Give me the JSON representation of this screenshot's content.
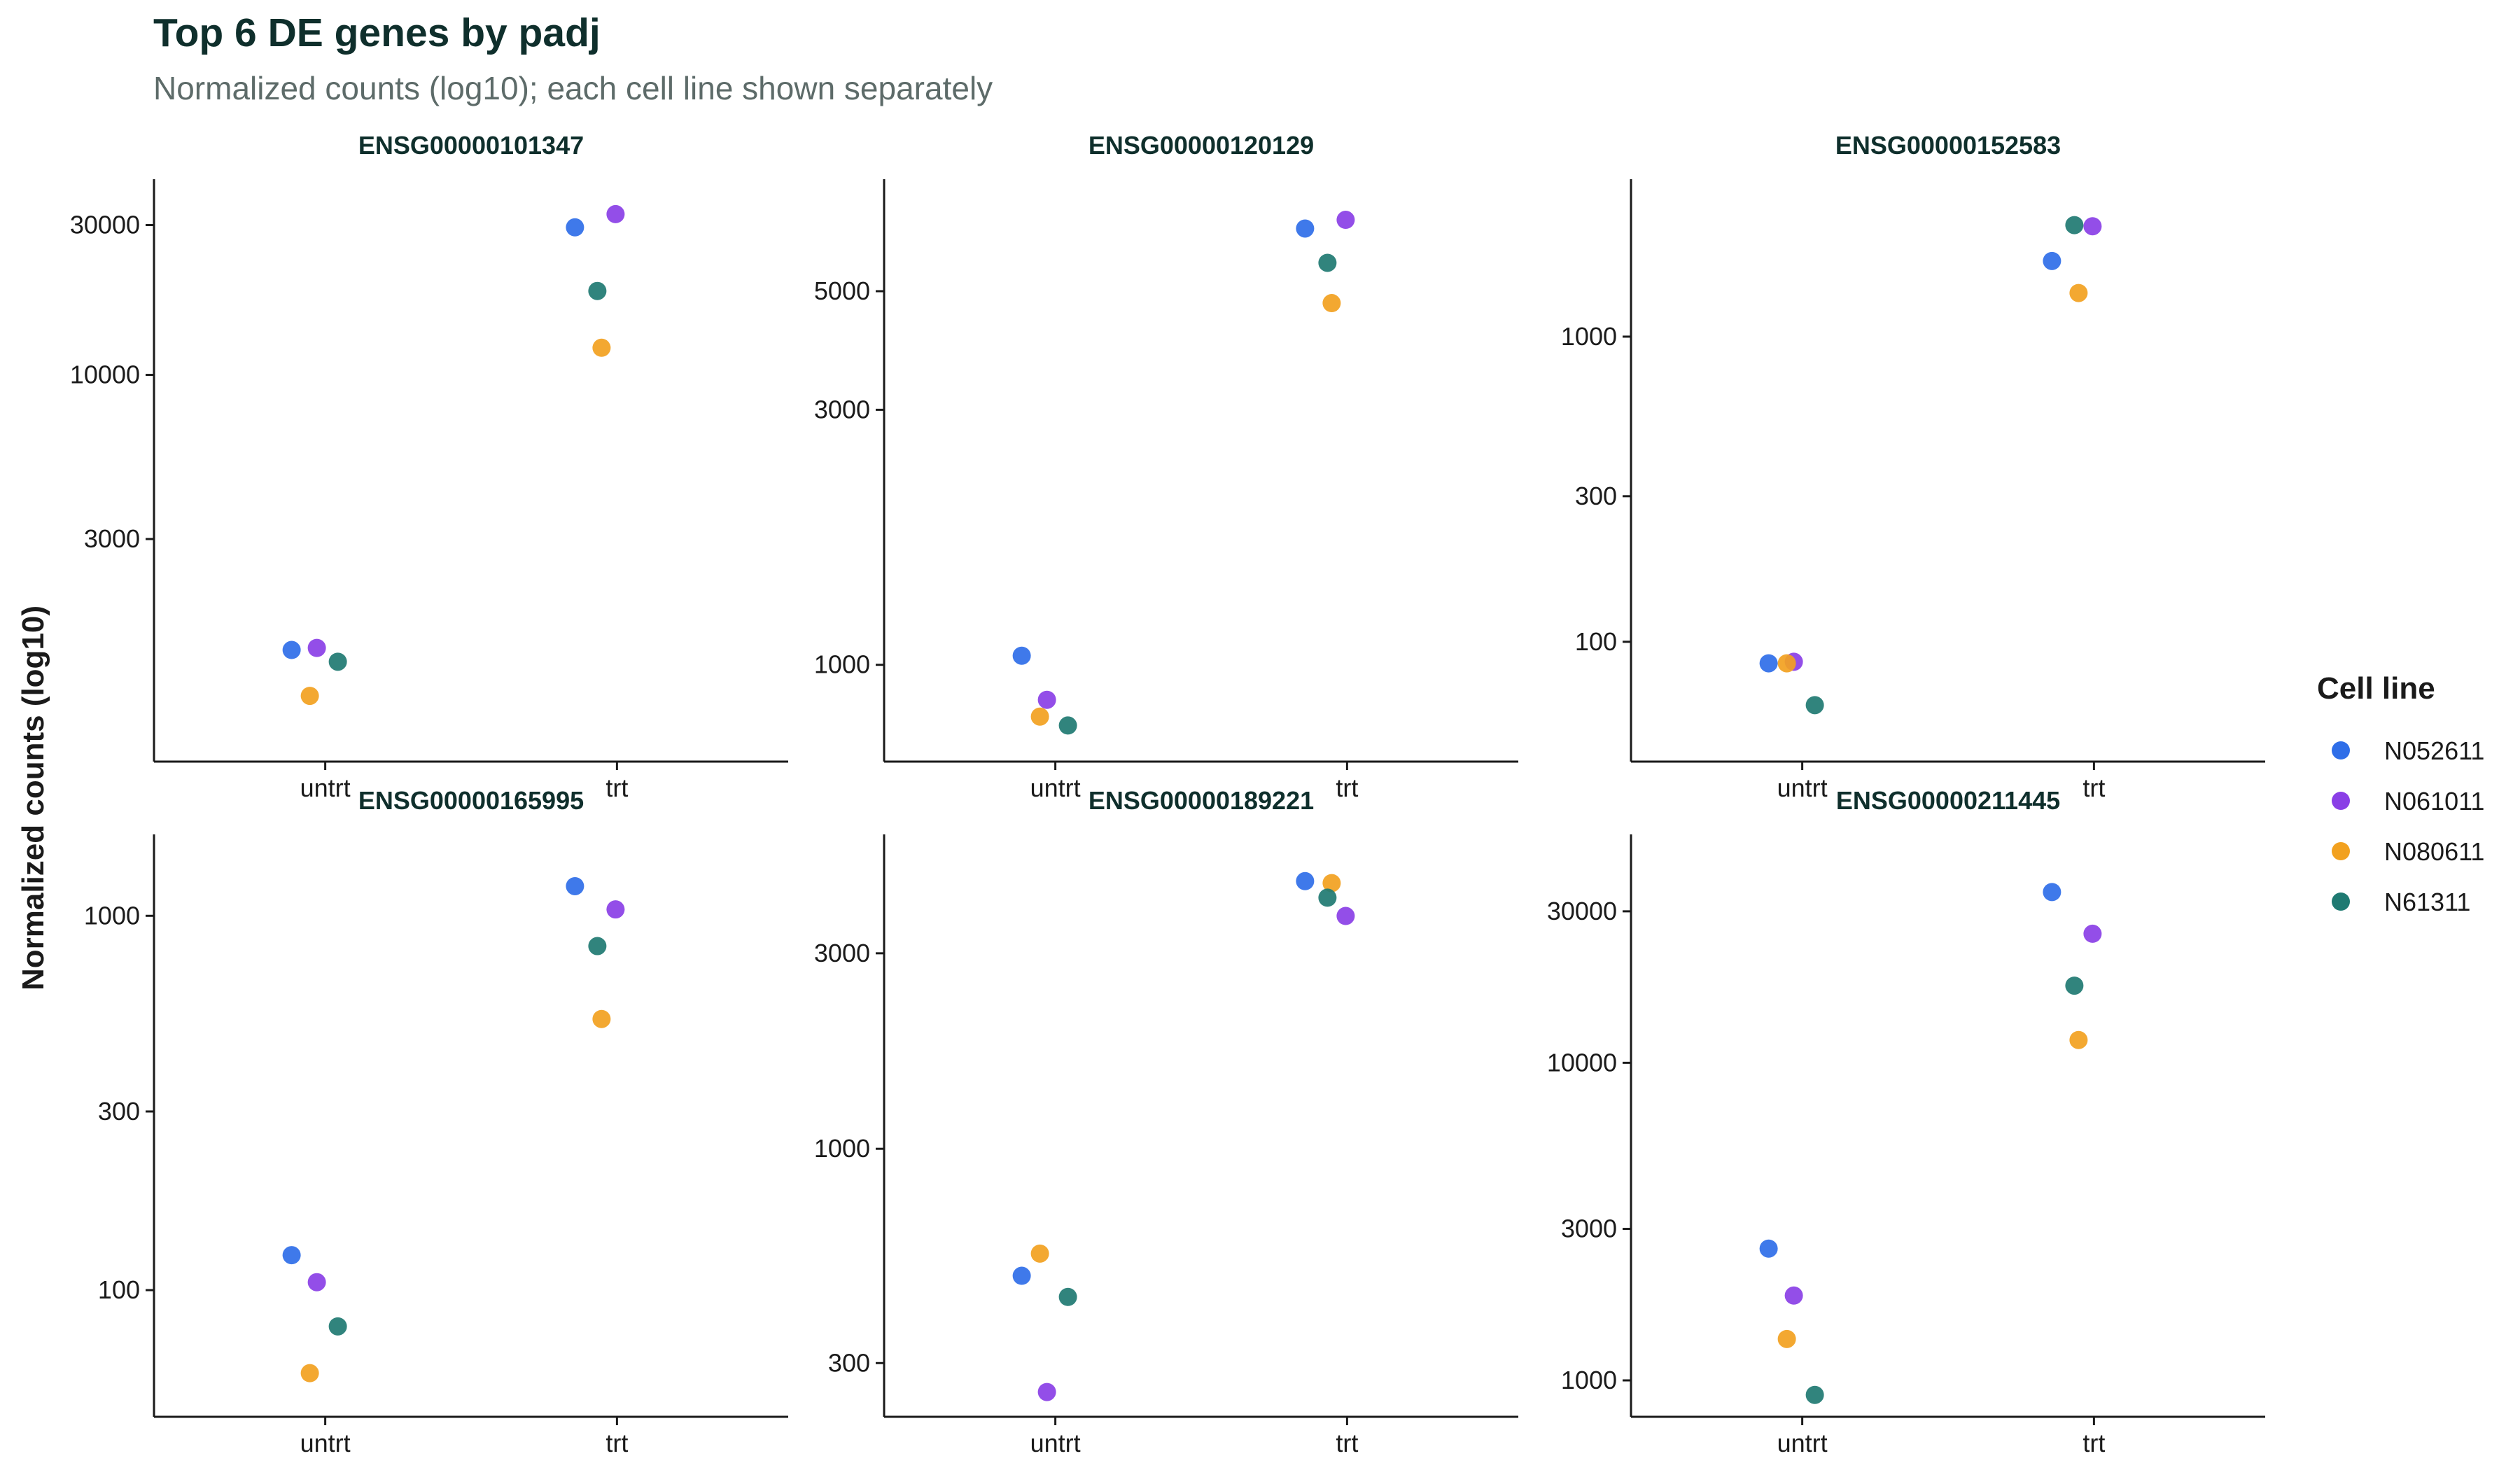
{
  "chart_data": {
    "type": "scatter",
    "title": "Top 6 DE genes by padj",
    "subtitle": "Normalized counts (log10); each cell line shown separately",
    "ylabel": "Normalized counts (log10)",
    "yscale": "log10",
    "categories": [
      "untrt",
      "trt"
    ],
    "legend": {
      "title": "Cell line",
      "placement": "right",
      "entries": [
        {
          "name": "N052611",
          "color": "#2f6ee8"
        },
        {
          "name": "N061011",
          "color": "#8a3fe6"
        },
        {
          "name": "N080611",
          "color": "#f2a11f"
        },
        {
          "name": "N61311",
          "color": "#1f7a72"
        }
      ]
    },
    "panels": [
      {
        "gene": "ENSG00000101347",
        "ylim": [
          650,
          36000
        ],
        "yticks": [
          3000,
          10000,
          30000
        ],
        "points": [
          {
            "cell_line": "N052611",
            "group": "untrt",
            "y": 1330
          },
          {
            "cell_line": "N061011",
            "group": "untrt",
            "y": 1350
          },
          {
            "cell_line": "N080611",
            "group": "untrt",
            "y": 950
          },
          {
            "cell_line": "N61311",
            "group": "untrt",
            "y": 1220
          },
          {
            "cell_line": "N052611",
            "group": "trt",
            "y": 29500
          },
          {
            "cell_line": "N061011",
            "group": "trt",
            "y": 32500
          },
          {
            "cell_line": "N080611",
            "group": "trt",
            "y": 12200
          },
          {
            "cell_line": "N61311",
            "group": "trt",
            "y": 18500
          }
        ]
      },
      {
        "gene": "ENSG00000120129",
        "ylim": [
          700,
          7400
        ],
        "yticks": [
          1000,
          3000,
          5000
        ],
        "points": [
          {
            "cell_line": "N052611",
            "group": "untrt",
            "y": 1040
          },
          {
            "cell_line": "N061011",
            "group": "untrt",
            "y": 860
          },
          {
            "cell_line": "N080611",
            "group": "untrt",
            "y": 800
          },
          {
            "cell_line": "N61311",
            "group": "untrt",
            "y": 770
          },
          {
            "cell_line": "N052611",
            "group": "trt",
            "y": 6550
          },
          {
            "cell_line": "N061011",
            "group": "trt",
            "y": 6800
          },
          {
            "cell_line": "N080611",
            "group": "trt",
            "y": 4750
          },
          {
            "cell_line": "N61311",
            "group": "trt",
            "y": 5650
          }
        ]
      },
      {
        "gene": "ENSG00000152583",
        "ylim": [
          45,
          2800
        ],
        "yticks": [
          100,
          300,
          1000
        ],
        "points": [
          {
            "cell_line": "N052611",
            "group": "untrt",
            "y": 85
          },
          {
            "cell_line": "N061011",
            "group": "untrt",
            "y": 86
          },
          {
            "cell_line": "N080611",
            "group": "untrt",
            "y": 85
          },
          {
            "cell_line": "N61311",
            "group": "untrt",
            "y": 62
          },
          {
            "cell_line": "N052611",
            "group": "trt",
            "y": 1770
          },
          {
            "cell_line": "N061011",
            "group": "trt",
            "y": 2300
          },
          {
            "cell_line": "N080611",
            "group": "trt",
            "y": 1390
          },
          {
            "cell_line": "N61311",
            "group": "trt",
            "y": 2320
          }
        ]
      },
      {
        "gene": "ENSG00000165995",
        "ylim": [
          50,
          1450
        ],
        "yticks": [
          100,
          300,
          1000
        ],
        "points": [
          {
            "cell_line": "N052611",
            "group": "untrt",
            "y": 124
          },
          {
            "cell_line": "N061011",
            "group": "untrt",
            "y": 105
          },
          {
            "cell_line": "N080611",
            "group": "untrt",
            "y": 60
          },
          {
            "cell_line": "N61311",
            "group": "untrt",
            "y": 80
          },
          {
            "cell_line": "N052611",
            "group": "trt",
            "y": 1200
          },
          {
            "cell_line": "N061011",
            "group": "trt",
            "y": 1040
          },
          {
            "cell_line": "N080611",
            "group": "trt",
            "y": 530
          },
          {
            "cell_line": "N61311",
            "group": "trt",
            "y": 830
          }
        ]
      },
      {
        "gene": "ENSG00000189221",
        "ylim": [
          240,
          5200
        ],
        "yticks": [
          300,
          1000,
          3000
        ],
        "points": [
          {
            "cell_line": "N052611",
            "group": "untrt",
            "y": 490
          },
          {
            "cell_line": "N061011",
            "group": "untrt",
            "y": 255
          },
          {
            "cell_line": "N080611",
            "group": "untrt",
            "y": 555
          },
          {
            "cell_line": "N61311",
            "group": "untrt",
            "y": 435
          },
          {
            "cell_line": "N052611",
            "group": "trt",
            "y": 4500
          },
          {
            "cell_line": "N061011",
            "group": "trt",
            "y": 3700
          },
          {
            "cell_line": "N080611",
            "group": "trt",
            "y": 4450
          },
          {
            "cell_line": "N61311",
            "group": "trt",
            "y": 4100
          }
        ]
      },
      {
        "gene": "ENSG00000211445",
        "ylim": [
          850,
          45000
        ],
        "yticks": [
          1000,
          3000,
          10000,
          30000
        ],
        "points": [
          {
            "cell_line": "N052611",
            "group": "untrt",
            "y": 2600
          },
          {
            "cell_line": "N061011",
            "group": "untrt",
            "y": 1850
          },
          {
            "cell_line": "N080611",
            "group": "untrt",
            "y": 1350
          },
          {
            "cell_line": "N61311",
            "group": "untrt",
            "y": 900
          },
          {
            "cell_line": "N052611",
            "group": "trt",
            "y": 34500
          },
          {
            "cell_line": "N061011",
            "group": "trt",
            "y": 25500
          },
          {
            "cell_line": "N080611",
            "group": "trt",
            "y": 11800
          },
          {
            "cell_line": "N61311",
            "group": "trt",
            "y": 17500
          }
        ]
      }
    ]
  }
}
